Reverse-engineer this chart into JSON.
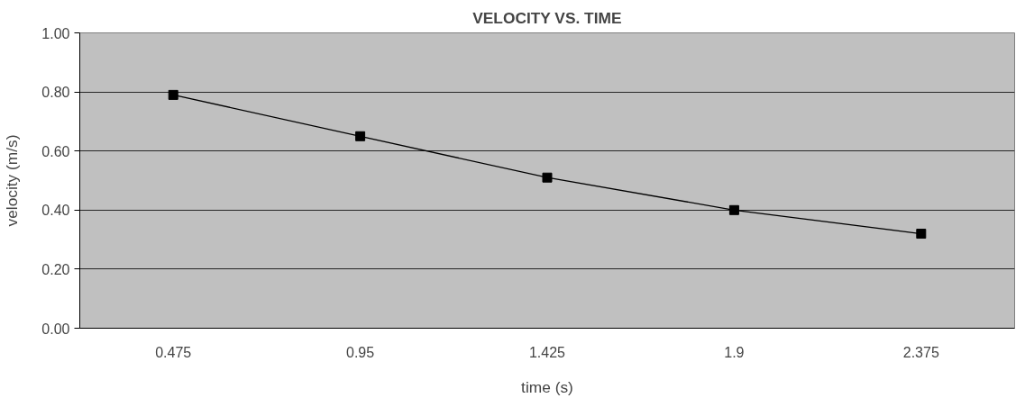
{
  "chart_data": {
    "type": "line",
    "title": "VELOCITY VS. TIME",
    "xlabel": "time (s)",
    "ylabel": "velocity (m/s)",
    "categories": [
      "0.475",
      "0.95",
      "1.425",
      "1.9",
      "2.375"
    ],
    "series": [
      {
        "color": "#000000",
        "values": [
          0.79,
          0.65,
          0.51,
          0.4,
          0.32
        ]
      }
    ],
    "ylim": [
      0,
      1
    ],
    "yticks": [
      {
        "value": 0,
        "label": "0.00"
      },
      {
        "value": 0.2,
        "label": "0.20"
      },
      {
        "value": 0.4,
        "label": "0.40"
      },
      {
        "value": 0.6,
        "label": "0.60"
      },
      {
        "value": 0.8,
        "label": "0.80"
      },
      {
        "value": 1,
        "label": "1.00"
      }
    ],
    "grid": "y",
    "marker": "square",
    "line_style": "solid"
  }
}
